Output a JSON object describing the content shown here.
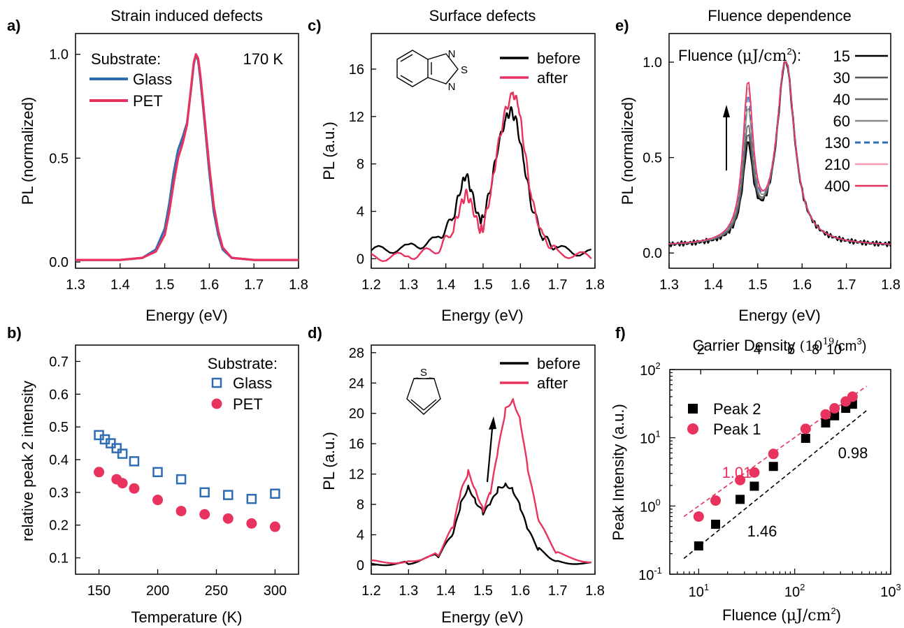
{
  "colors": {
    "blue": "#2e6db4",
    "pink": "#e8335f",
    "black": "#000000",
    "grey": "#7a7a7a",
    "lightpink": "#f39ab0"
  },
  "chart_data": [
    {
      "id": "a",
      "panel_label": "a)",
      "type": "line",
      "title": "Strain induced defects",
      "xlabel": "Energy (eV)",
      "ylabel": "PL (normalized)",
      "xlim": [
        1.3,
        1.8
      ],
      "ylim": [
        -0.03,
        1.1
      ],
      "xticks": [
        1.3,
        1.4,
        1.5,
        1.6,
        1.7,
        1.8
      ],
      "xtick_labels": [
        "1.3",
        "1.4",
        "1.5",
        "1.6",
        "1.7",
        "1.8"
      ],
      "yticks": [
        0.0,
        0.5,
        1.0
      ],
      "ytick_labels": [
        "0.0",
        "0.5",
        "1.0"
      ],
      "annotations": [
        "170 K"
      ],
      "legend_title": "Substrate:",
      "series": [
        {
          "name": "Glass",
          "color": "#2e6db4",
          "x": [
            1.3,
            1.4,
            1.45,
            1.48,
            1.5,
            1.51,
            1.52,
            1.53,
            1.54,
            1.55,
            1.56,
            1.565,
            1.57,
            1.575,
            1.58,
            1.59,
            1.6,
            1.61,
            1.62,
            1.63,
            1.65,
            1.7,
            1.8
          ],
          "y": [
            0.01,
            0.01,
            0.02,
            0.06,
            0.16,
            0.28,
            0.43,
            0.54,
            0.6,
            0.67,
            0.85,
            0.95,
            1.0,
            0.97,
            0.88,
            0.66,
            0.43,
            0.24,
            0.13,
            0.06,
            0.02,
            0.01,
            0.01
          ]
        },
        {
          "name": "PET",
          "color": "#e8335f",
          "x": [
            1.3,
            1.4,
            1.45,
            1.48,
            1.5,
            1.51,
            1.52,
            1.53,
            1.54,
            1.55,
            1.56,
            1.565,
            1.57,
            1.575,
            1.58,
            1.59,
            1.6,
            1.61,
            1.62,
            1.63,
            1.65,
            1.7,
            1.8
          ],
          "y": [
            0.01,
            0.01,
            0.02,
            0.05,
            0.13,
            0.24,
            0.38,
            0.5,
            0.57,
            0.66,
            0.86,
            0.96,
            1.0,
            0.98,
            0.9,
            0.68,
            0.46,
            0.27,
            0.15,
            0.07,
            0.02,
            0.01,
            0.01
          ]
        }
      ]
    },
    {
      "id": "b",
      "panel_label": "b)",
      "type": "scatter",
      "xlabel": "Temperature (K)",
      "ylabel": "relative peak 2 intensity",
      "xlim": [
        130,
        320
      ],
      "ylim": [
        0.05,
        0.75
      ],
      "xticks": [
        150,
        200,
        250,
        300
      ],
      "xtick_labels": [
        "150",
        "200",
        "250",
        "300"
      ],
      "yticks": [
        0.1,
        0.2,
        0.3,
        0.4,
        0.5,
        0.6,
        0.7
      ],
      "ytick_labels": [
        "0.1",
        "0.2",
        "0.3",
        "0.4",
        "0.5",
        "0.6",
        "0.7"
      ],
      "legend_title": "Substrate:",
      "series": [
        {
          "name": "Glass",
          "marker": "open-square",
          "color": "#2e6db4",
          "x": [
            150,
            155,
            160,
            165,
            170,
            180,
            200,
            220,
            240,
            260,
            280,
            300
          ],
          "y": [
            0.475,
            0.462,
            0.45,
            0.435,
            0.418,
            0.395,
            0.362,
            0.34,
            0.3,
            0.292,
            0.28,
            0.296
          ]
        },
        {
          "name": "PET",
          "marker": "filled-circle",
          "color": "#e8335f",
          "x": [
            150,
            165,
            170,
            180,
            200,
            220,
            240,
            260,
            280,
            300
          ],
          "y": [
            0.362,
            0.34,
            0.328,
            0.312,
            0.277,
            0.243,
            0.233,
            0.22,
            0.205,
            0.195
          ]
        }
      ]
    },
    {
      "id": "c",
      "panel_label": "c)",
      "type": "line",
      "title": "Surface defects",
      "xlabel": "Energy (eV)",
      "ylabel": "PL (a.u.)",
      "xlim": [
        1.2,
        1.8
      ],
      "ylim": [
        -0.8,
        19
      ],
      "xticks": [
        1.2,
        1.3,
        1.4,
        1.5,
        1.6,
        1.7,
        1.8
      ],
      "xtick_labels": [
        "1.2",
        "1.3",
        "1.4",
        "1.5",
        "1.6",
        "1.7",
        "1.8"
      ],
      "yticks": [
        0,
        4,
        8,
        12,
        16
      ],
      "ytick_labels": [
        "0",
        "4",
        "8",
        "12",
        "16"
      ],
      "molecule_labels": [
        "N",
        "S",
        "N"
      ],
      "series": [
        {
          "name": "before",
          "color": "#000000",
          "x": [
            1.2,
            1.3,
            1.38,
            1.42,
            1.44,
            1.455,
            1.47,
            1.49,
            1.5,
            1.52,
            1.54,
            1.56,
            1.575,
            1.59,
            1.61,
            1.63,
            1.66,
            1.7,
            1.8
          ],
          "y": [
            0.7,
            0.9,
            1.6,
            3.5,
            6.0,
            7.2,
            5.5,
            3.2,
            3.4,
            6.0,
            9.5,
            11.8,
            12.5,
            11.5,
            8.0,
            4.5,
            1.8,
            0.8,
            0.4
          ]
        },
        {
          "name": "after",
          "color": "#e8335f",
          "x": [
            1.2,
            1.3,
            1.38,
            1.42,
            1.44,
            1.455,
            1.47,
            1.49,
            1.5,
            1.52,
            1.54,
            1.56,
            1.58,
            1.595,
            1.61,
            1.63,
            1.66,
            1.7,
            1.8
          ],
          "y": [
            0.1,
            0.2,
            0.8,
            2.5,
            4.5,
            5.5,
            4.5,
            2.5,
            2.6,
            5.5,
            9.5,
            12.5,
            14.0,
            13.0,
            9.5,
            5.0,
            1.8,
            0.5,
            0.1
          ]
        }
      ]
    },
    {
      "id": "d",
      "panel_label": "d)",
      "type": "line",
      "xlabel": "Energy (eV)",
      "ylabel": "PL (a.u.)",
      "xlim": [
        1.2,
        1.8
      ],
      "ylim": [
        -1.2,
        29
      ],
      "xticks": [
        1.2,
        1.3,
        1.4,
        1.5,
        1.6,
        1.7,
        1.8
      ],
      "xtick_labels": [
        "1.2",
        "1.3",
        "1.4",
        "1.5",
        "1.6",
        "1.7",
        "1.8"
      ],
      "yticks": [
        0,
        4,
        8,
        12,
        16,
        20,
        24,
        28
      ],
      "ytick_labels": [
        "0",
        "4",
        "8",
        "12",
        "16",
        "20",
        "24",
        "28"
      ],
      "molecule_labels": [
        "S"
      ],
      "series": [
        {
          "name": "before",
          "color": "#000000",
          "x": [
            1.2,
            1.3,
            1.38,
            1.42,
            1.44,
            1.46,
            1.48,
            1.5,
            1.52,
            1.54,
            1.56,
            1.58,
            1.6,
            1.62,
            1.65,
            1.7,
            1.8
          ],
          "y": [
            0.2,
            0.4,
            1.2,
            4.0,
            8.0,
            10.5,
            8.5,
            6.8,
            8.0,
            10.0,
            10.8,
            10.0,
            7.5,
            4.5,
            2.0,
            0.6,
            0.2
          ]
        },
        {
          "name": "after",
          "color": "#e8335f",
          "x": [
            1.2,
            1.3,
            1.38,
            1.42,
            1.44,
            1.46,
            1.48,
            1.5,
            1.52,
            1.54,
            1.56,
            1.58,
            1.6,
            1.62,
            1.65,
            1.7,
            1.8
          ],
          "y": [
            0.4,
            0.6,
            1.5,
            5.0,
            9.5,
            12.3,
            10.0,
            7.3,
            9.5,
            15.0,
            20.5,
            22.0,
            19.0,
            12.5,
            5.5,
            1.5,
            0.4
          ]
        }
      ]
    },
    {
      "id": "e",
      "panel_label": "e)",
      "type": "line",
      "title": "Fluence dependence",
      "xlabel": "Energy (eV)",
      "ylabel": "PL (normalized)",
      "xlim": [
        1.3,
        1.8
      ],
      "ylim": [
        -0.08,
        1.15
      ],
      "xticks": [
        1.3,
        1.4,
        1.5,
        1.6,
        1.7,
        1.8
      ],
      "xtick_labels": [
        "1.3",
        "1.4",
        "1.5",
        "1.6",
        "1.7",
        "1.8"
      ],
      "yticks": [
        0.0,
        0.5,
        1.0
      ],
      "ytick_labels": [
        "0.0",
        "0.5",
        "1.0"
      ],
      "legend_title_main": "Fluence (",
      "legend_title_unit": "μJ/cm",
      "legend_title_sup": "2",
      "legend_title_end": "):",
      "peak1_heights": [
        0.48,
        0.52,
        0.57,
        0.66,
        0.73,
        0.77,
        0.8
      ],
      "series": [
        {
          "name": "15",
          "color": "#000000",
          "dash": ""
        },
        {
          "name": "30",
          "color": "#555555",
          "dash": ""
        },
        {
          "name": "40",
          "color": "#666666",
          "dash": ""
        },
        {
          "name": "60",
          "color": "#8a8a8a",
          "dash": ""
        },
        {
          "name": "130",
          "color": "#2e6db4",
          "dash": "8,5"
        },
        {
          "name": "210",
          "color": "#f39ab0",
          "dash": ""
        },
        {
          "name": "400",
          "color": "#e8335f",
          "dash": ""
        }
      ]
    },
    {
      "id": "f",
      "panel_label": "f)",
      "type": "scatter",
      "xscale": "log",
      "yscale": "log",
      "top_axis_label": "Carrier Density",
      "top_axis_unit_base": "(10",
      "top_axis_unit_exp": "19",
      "top_axis_unit_mid": "/cm",
      "top_axis_unit_sup": "3",
      "top_axis_unit_end": ")",
      "top_ticks_fluence": [
        10.5,
        41,
        92,
        165,
        257
      ],
      "top_tick_labels": [
        "2",
        "4",
        "6",
        "8",
        "10"
      ],
      "xlabel_main": "Fluence (",
      "xlabel_unit": "μJ/cm",
      "xlabel_sup": "2",
      "xlabel_end": ")",
      "ylabel": "Peak Intensity (a.u.)",
      "xlim": [
        5,
        1000
      ],
      "ylim": [
        0.1,
        100
      ],
      "xtick_exps": [
        "1",
        "2",
        "3"
      ],
      "ytick_exps": [
        "-1",
        "0",
        "1",
        "2"
      ],
      "fit_labels": [
        "1.01",
        "0.98",
        "1.46"
      ],
      "series": [
        {
          "name": "Peak 2",
          "marker": "filled-square",
          "color": "#000000",
          "x": [
            10,
            15,
            27,
            38,
            60,
            130,
            210,
            260,
            340,
            400
          ],
          "y": [
            0.26,
            0.54,
            1.25,
            1.95,
            3.8,
            9.8,
            16.5,
            21,
            27,
            31
          ]
        },
        {
          "name": "Peak 1",
          "marker": "filled-circle",
          "color": "#e8335f",
          "x": [
            10,
            15,
            27,
            38,
            60,
            130,
            210,
            260,
            340,
            400
          ],
          "y": [
            0.7,
            1.2,
            2.4,
            3.1,
            5.8,
            13.5,
            22,
            27,
            34,
            40
          ]
        }
      ],
      "fits": [
        {
          "color": "#e8335f",
          "x": [
            7,
            560
          ],
          "y": [
            0.7,
            57
          ]
        },
        {
          "color": "#000000",
          "x": [
            7,
            560
          ],
          "y": [
            0.17,
            25
          ]
        }
      ]
    }
  ]
}
